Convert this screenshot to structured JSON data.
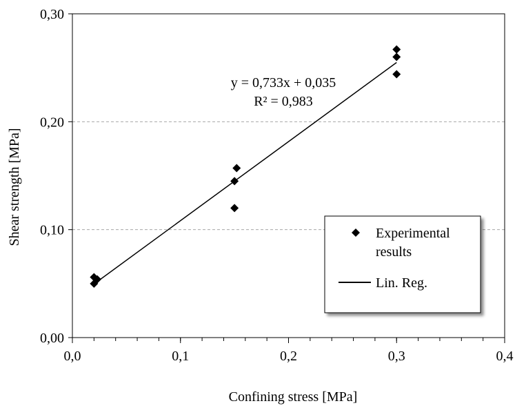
{
  "chart_data": {
    "type": "scatter",
    "title": "",
    "xlabel": "Confining stress [MPa]",
    "ylabel": "Shear strength [MPa]",
    "xlim": [
      0.0,
      0.4
    ],
    "ylim": [
      0.0,
      0.3
    ],
    "x_ticks": [
      0.0,
      0.1,
      0.2,
      0.3,
      0.4
    ],
    "y_ticks": [
      0.0,
      0.1,
      0.2,
      0.3
    ],
    "x_tick_labels": [
      "0,0",
      "0,1",
      "0,2",
      "0,3",
      "0,4"
    ],
    "y_tick_labels": [
      "0,00",
      "0,10",
      "0,20",
      "0,30"
    ],
    "x_minor_tick_step": 0.02,
    "horizontal_gridlines": "dashed",
    "legend_position": "bottom-right",
    "series": [
      {
        "name": "Experimental results",
        "type": "scatter",
        "marker": "diamond",
        "color": "#000000",
        "points": [
          {
            "x": 0.02,
            "y": 0.05
          },
          {
            "x": 0.02,
            "y": 0.056
          },
          {
            "x": 0.023,
            "y": 0.054
          },
          {
            "x": 0.15,
            "y": 0.12
          },
          {
            "x": 0.15,
            "y": 0.145
          },
          {
            "x": 0.152,
            "y": 0.157
          },
          {
            "x": 0.3,
            "y": 0.244
          },
          {
            "x": 0.3,
            "y": 0.26
          },
          {
            "x": 0.3,
            "y": 0.267
          }
        ]
      },
      {
        "name": "Lin. Reg.",
        "type": "line",
        "color": "#000000",
        "slope": 0.733,
        "intercept": 0.035,
        "x_range": [
          0.02,
          0.3
        ]
      }
    ],
    "annotations": {
      "equation": "y = 0,733x + 0,035",
      "r_squared": "R² = 0,983"
    },
    "legend": {
      "entries": [
        {
          "label_lines": [
            "Experimental",
            "results"
          ]
        },
        {
          "label_lines": [
            "Lin. Reg."
          ]
        }
      ]
    }
  }
}
